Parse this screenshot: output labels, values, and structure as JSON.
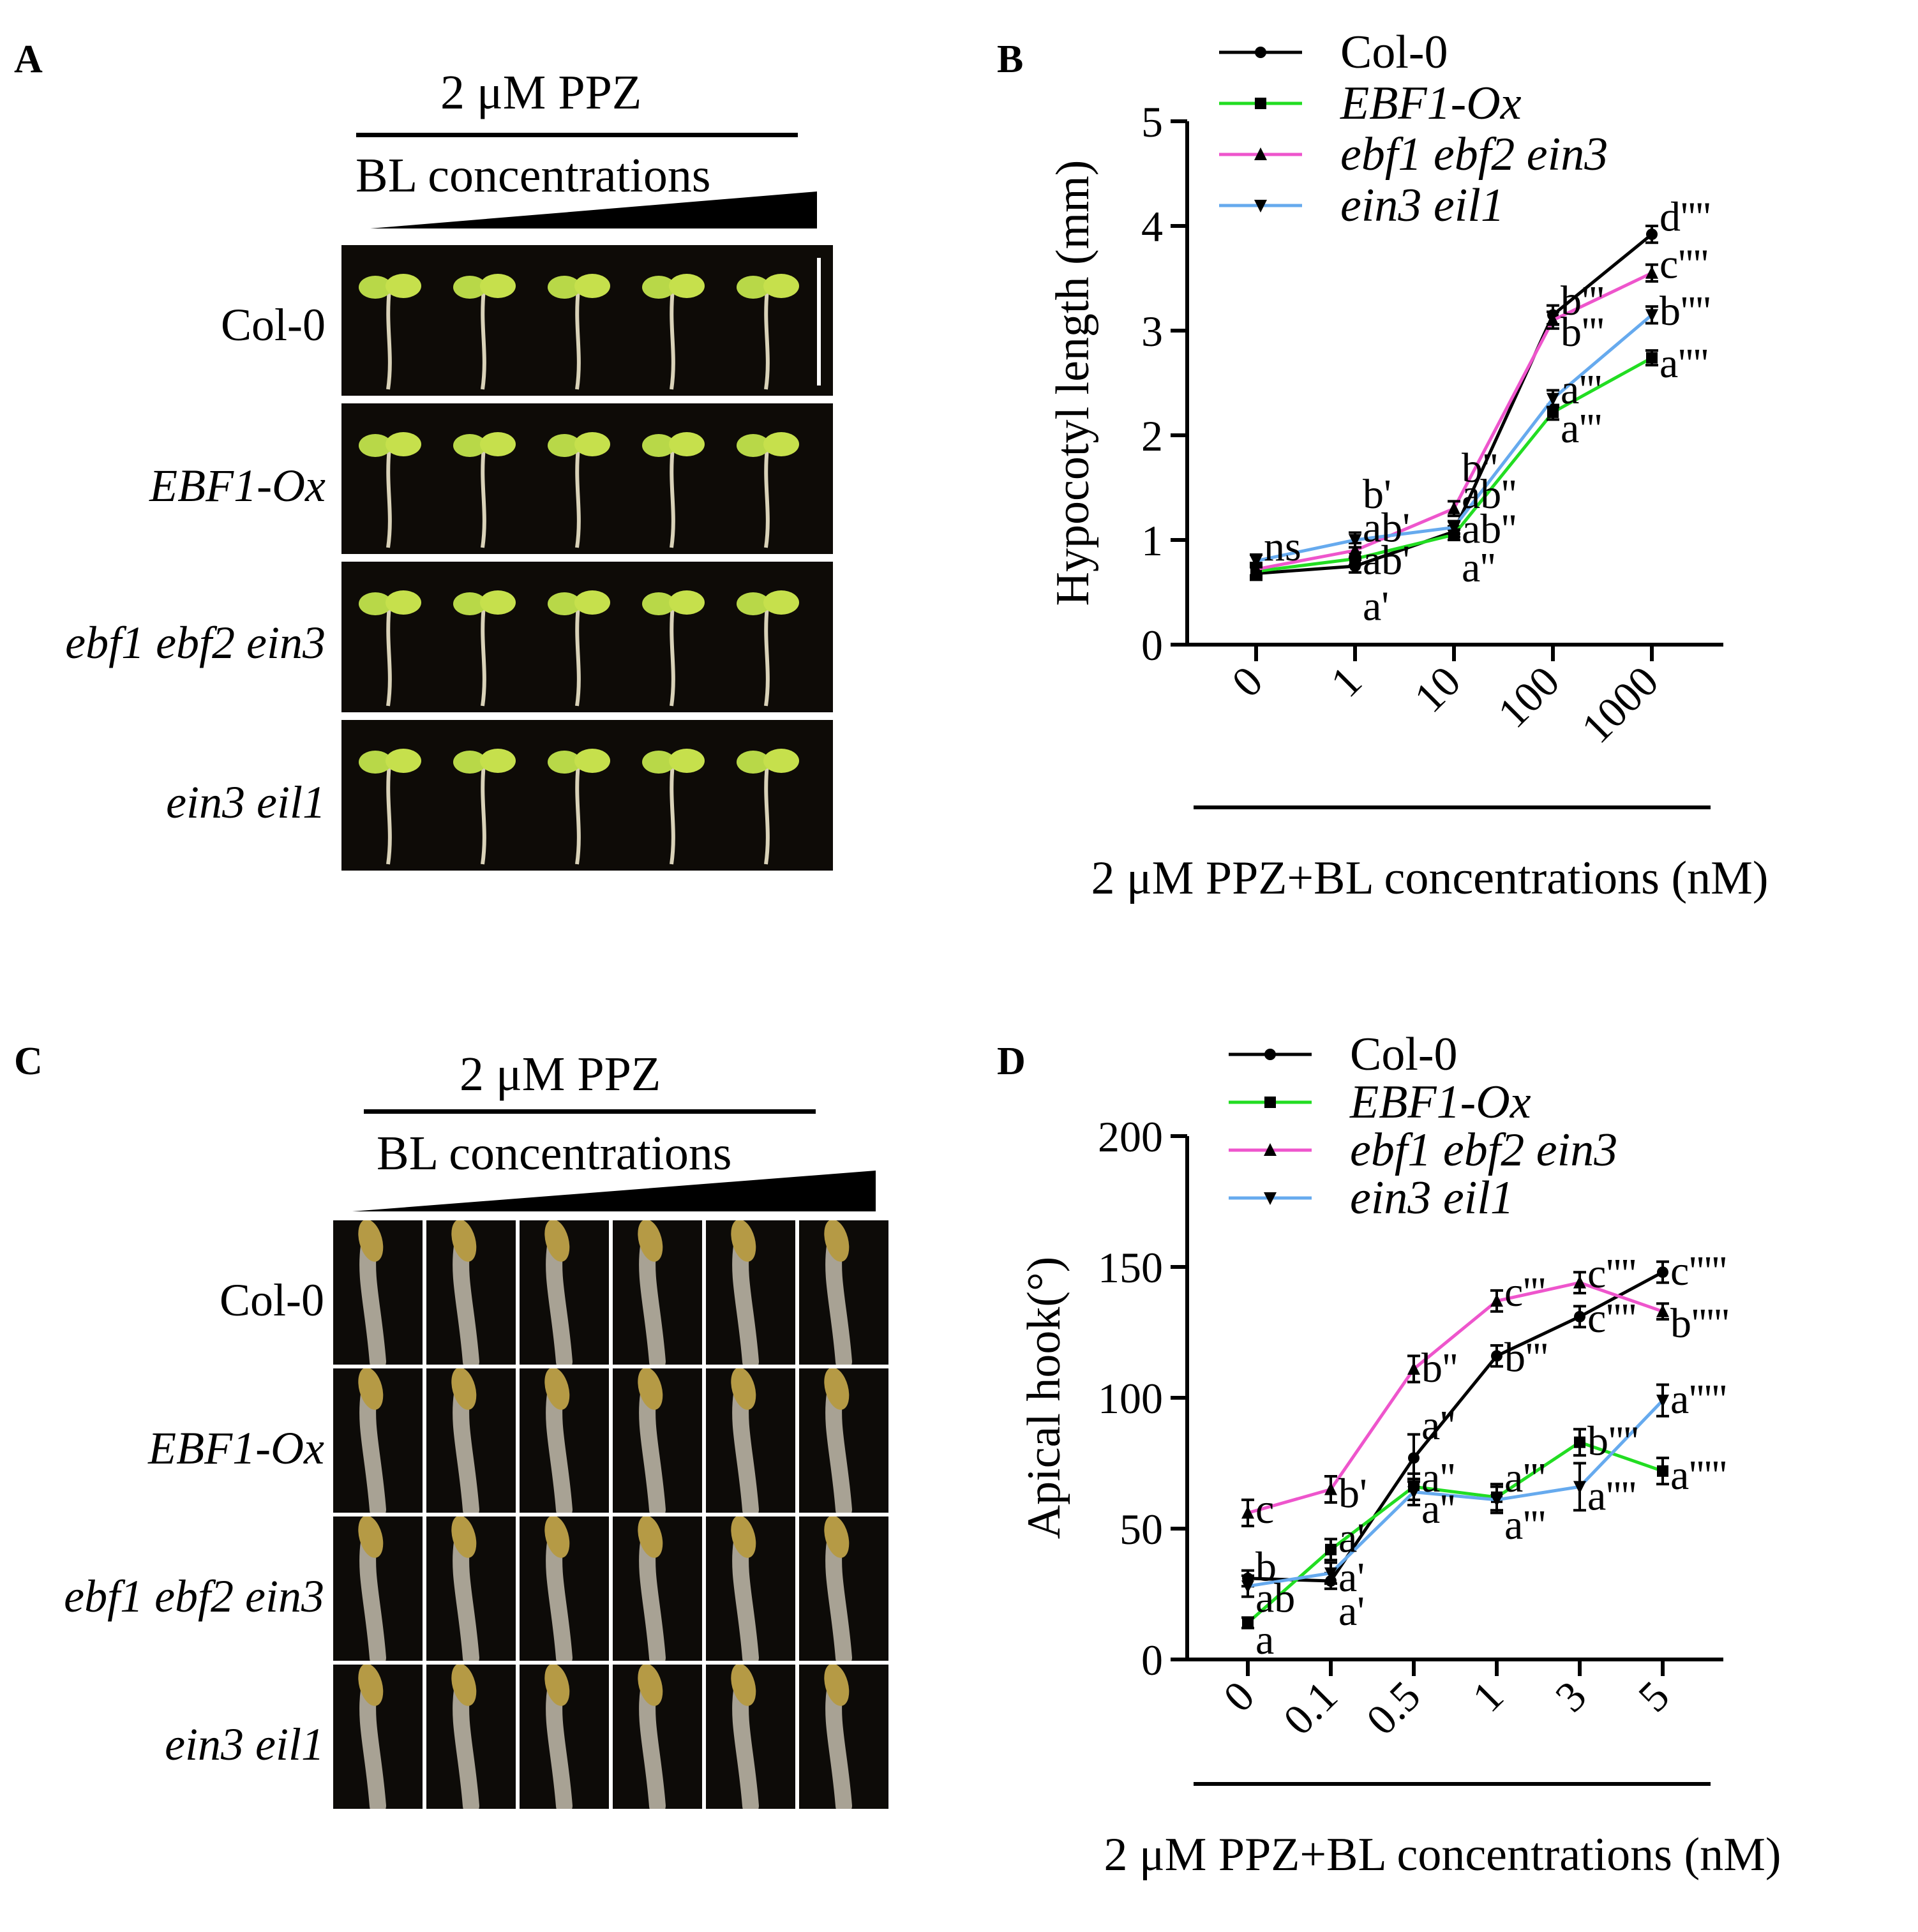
{
  "panels": {
    "A": {
      "letter": "A",
      "treatment": "2 μM PPZ",
      "gradient_label": "BL concentrations",
      "rows": [
        {
          "label": "Col-0",
          "italic": false
        },
        {
          "label": "EBF1-Ox",
          "italic": true
        },
        {
          "label": "ebf1 ebf2 ein3",
          "italic": true
        },
        {
          "label": "ein3 eil1",
          "italic": true
        }
      ],
      "seedlings_per_row": 5
    },
    "C": {
      "letter": "C",
      "treatment": "2 μM PPZ",
      "gradient_label": "BL concentrations",
      "rows": [
        {
          "label": "Col-0",
          "italic": false
        },
        {
          "label": "EBF1-Ox",
          "italic": true
        },
        {
          "label": "ebf1 ebf2 ein3",
          "italic": true
        },
        {
          "label": "ein3 eil1",
          "italic": true
        }
      ],
      "columns": 6
    }
  },
  "colors": {
    "Col-0": "#000000",
    "EBF1-Ox": "#22dd22",
    "ebf1 ebf2 ein3": "#ee55cc",
    "ein3 eil1": "#66aaee"
  },
  "chart_data": [
    {
      "panel": "B",
      "type": "line",
      "ylabel": "Hypocotyl length (mm)",
      "xlabel": "2 μM PPZ+BL concentrations (nM)",
      "categories": [
        "0",
        "1",
        "10",
        "100",
        "1000"
      ],
      "ylim": [
        0,
        5
      ],
      "yticks": [
        0,
        1,
        2,
        3,
        4,
        5
      ],
      "legend_position": "top",
      "series": [
        {
          "name": "Col-0",
          "italic": false,
          "marker": "circle",
          "values": [
            0.68,
            0.75,
            1.08,
            3.15,
            3.92
          ],
          "errors": [
            0.06,
            0.06,
            0.05,
            0.09,
            0.08
          ]
        },
        {
          "name": "EBF1-Ox",
          "italic": true,
          "marker": "square",
          "values": [
            0.7,
            0.82,
            1.05,
            2.22,
            2.74
          ],
          "errors": [
            0.06,
            0.06,
            0.05,
            0.07,
            0.07
          ]
        },
        {
          "name": "ebf1 ebf2 ein3",
          "italic": true,
          "marker": "triangle-up",
          "values": [
            0.72,
            0.9,
            1.3,
            3.1,
            3.55
          ],
          "errors": [
            0.06,
            0.07,
            0.07,
            0.08,
            0.08
          ]
        },
        {
          "name": "ein3 eil1",
          "italic": true,
          "marker": "triangle-down",
          "values": [
            0.8,
            1.0,
            1.12,
            2.35,
            3.15
          ],
          "errors": [
            0.06,
            0.07,
            0.06,
            0.08,
            0.08
          ]
        }
      ],
      "annotations": [
        {
          "text": "ns",
          "x": 0,
          "y": 0.95
        },
        {
          "text": "b'",
          "x": 1,
          "y": 1.45
        },
        {
          "text": "ab'",
          "x": 1,
          "y": 1.13
        },
        {
          "text": "ab'",
          "x": 1,
          "y": 0.82
        },
        {
          "text": "a'",
          "x": 1,
          "y": 0.38
        },
        {
          "text": "b''",
          "x": 2,
          "y": 1.7
        },
        {
          "text": "ab''",
          "x": 2,
          "y": 1.45
        },
        {
          "text": "ab''",
          "x": 2,
          "y": 1.12
        },
        {
          "text": "a''",
          "x": 2,
          "y": 0.75
        },
        {
          "text": "b'''",
          "x": 3,
          "y": 3.3
        },
        {
          "text": "b'''",
          "x": 3,
          "y": 3.0
        },
        {
          "text": "a'''",
          "x": 3,
          "y": 2.45
        },
        {
          "text": "a'''",
          "x": 3,
          "y": 2.08
        },
        {
          "text": "d''''",
          "x": 4,
          "y": 4.1
        },
        {
          "text": "c''''",
          "x": 4,
          "y": 3.65
        },
        {
          "text": "b''''",
          "x": 4,
          "y": 3.2
        },
        {
          "text": "a''''",
          "x": 4,
          "y": 2.7
        }
      ]
    },
    {
      "panel": "D",
      "type": "line",
      "ylabel": "Apical hook(°)",
      "xlabel": "2 μM PPZ+BL concentrations (nM)",
      "categories": [
        "0",
        "0.1",
        "0.5",
        "1",
        "3",
        "5"
      ],
      "ylim": [
        0,
        200
      ],
      "yticks": [
        0,
        50,
        100,
        150,
        200
      ],
      "legend_position": "top",
      "series": [
        {
          "name": "Col-0",
          "italic": false,
          "marker": "circle",
          "values": [
            31,
            30,
            77,
            116,
            131,
            148
          ],
          "errors": [
            3,
            3,
            9,
            4,
            4,
            4
          ]
        },
        {
          "name": "EBF1-Ox",
          "italic": true,
          "marker": "square",
          "values": [
            14,
            42,
            66,
            62,
            83,
            72
          ],
          "errors": [
            2,
            4,
            5,
            5,
            5,
            5
          ]
        },
        {
          "name": "ebf1 ebf2 ein3",
          "italic": true,
          "marker": "triangle-up",
          "values": [
            56,
            65,
            111,
            137,
            144,
            133
          ],
          "errors": [
            5,
            5,
            5,
            4,
            4,
            3
          ]
        },
        {
          "name": "ein3 eil1",
          "italic": true,
          "marker": "triangle-down",
          "values": [
            28,
            33,
            64,
            61,
            66,
            99
          ],
          "errors": [
            4,
            4,
            5,
            5,
            9,
            6
          ]
        }
      ],
      "annotations": [
        {
          "text": "c",
          "x": 0,
          "y": 58
        },
        {
          "text": "b",
          "x": 0,
          "y": 36
        },
        {
          "text": "ab",
          "x": 0,
          "y": 24
        },
        {
          "text": "a",
          "x": 0,
          "y": 8
        },
        {
          "text": "b'",
          "x": 1,
          "y": 64
        },
        {
          "text": "a'",
          "x": 1,
          "y": 47
        },
        {
          "text": "a'",
          "x": 1,
          "y": 32
        },
        {
          "text": "a'",
          "x": 1,
          "y": 19
        },
        {
          "text": "a''",
          "x": 2,
          "y": 90
        },
        {
          "text": "b''",
          "x": 2,
          "y": 112
        },
        {
          "text": "a''",
          "x": 2,
          "y": 70
        },
        {
          "text": "a''",
          "x": 2,
          "y": 58
        },
        {
          "text": "c'''",
          "x": 3,
          "y": 141
        },
        {
          "text": "b'''",
          "x": 3,
          "y": 116
        },
        {
          "text": "a'''",
          "x": 3,
          "y": 70
        },
        {
          "text": "a'''",
          "x": 3,
          "y": 52
        },
        {
          "text": "c''''",
          "x": 4,
          "y": 148
        },
        {
          "text": "c''''",
          "x": 4,
          "y": 131
        },
        {
          "text": "b''''",
          "x": 4,
          "y": 84
        },
        {
          "text": "a''''",
          "x": 4,
          "y": 63
        },
        {
          "text": "c'''''",
          "x": 5,
          "y": 149
        },
        {
          "text": "b'''''",
          "x": 5,
          "y": 129
        },
        {
          "text": "a'''''",
          "x": 5,
          "y": 100
        },
        {
          "text": "a'''''",
          "x": 5,
          "y": 71
        }
      ]
    }
  ]
}
